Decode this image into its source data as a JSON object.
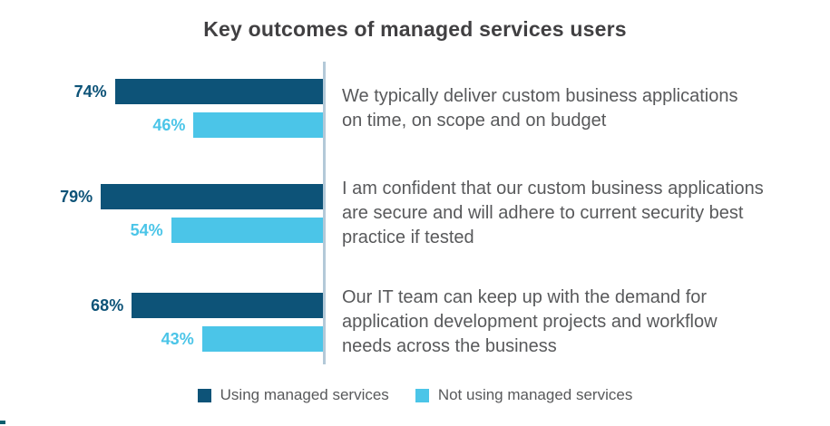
{
  "chart_data": {
    "type": "bar",
    "orientation": "horizontal",
    "title": "Key outcomes of managed services users",
    "categories": [
      "We typically deliver custom business applications\non time, on scope and on budget",
      "I am confident that our custom business applications\nare secure and will adhere to current security best\npractice if tested",
      "Our IT team can keep up with the demand for\napplication development projects and workflow\nneeds across the business"
    ],
    "series": [
      {
        "name": "Using managed services",
        "color": "#0d5378",
        "values": [
          74,
          79,
          68
        ],
        "labels": [
          "74%",
          "79%",
          "68%"
        ]
      },
      {
        "name": "Not using managed services",
        "color": "#4bc5e8",
        "values": [
          46,
          54,
          43
        ],
        "labels": [
          "46%",
          "54%",
          "43%"
        ]
      }
    ],
    "value_suffix": "%",
    "xlim": [
      0,
      100
    ],
    "grid": false,
    "legend_position": "bottom",
    "axis_line_color": "#b3c9d8",
    "text_color": "#58595b",
    "title_color": "#414042"
  }
}
